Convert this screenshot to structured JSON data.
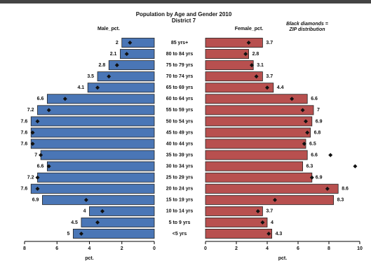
{
  "chart_data": {
    "type": "pyramid",
    "title": "Population by Age and Gender 2010",
    "subtitle": "District 7",
    "annotation": [
      "Black diamonds =",
      "ZIP distribution"
    ],
    "categories": [
      "85 yrs+",
      "80 to 84 yrs",
      "75 to 79 yrs",
      "70 to 74 yrs",
      "65 to 69 yrs",
      "60 to 64 yrs",
      "55 to 59 yrs",
      "50 to 54 yrs",
      "45 to 49 yrs",
      "40 to 44 yrs",
      "35 to 39 yrs",
      "30 to 34 yrs",
      "25 to 29 yrs",
      "20 to 24 yrs",
      "15 to 19 yrs",
      "10 to 14 yrs",
      "5 to 9 yrs",
      "<5 yrs"
    ],
    "series": [
      {
        "name": "Male_pct.",
        "color": "#4a76b6",
        "xlabel": "pct.",
        "xlim": [
          8,
          0
        ],
        "xticks": [
          8,
          6,
          4,
          2,
          0
        ],
        "values": [
          2,
          2.1,
          2.8,
          3.5,
          4.1,
          6.6,
          7.2,
          7.6,
          7.6,
          7.6,
          7,
          6.6,
          7.2,
          7.6,
          6.9,
          4,
          4.5,
          5
        ],
        "zip_values": [
          1.5,
          1.7,
          2.3,
          2.8,
          3.5,
          5.5,
          6.5,
          7.2,
          7.5,
          7.5,
          7,
          6.5,
          7.2,
          7.2,
          4.2,
          3.2,
          3.5,
          4.5
        ]
      },
      {
        "name": "Female_pct.",
        "color": "#b8504f",
        "xlabel": "pct.",
        "xlim": [
          0,
          10
        ],
        "xticks": [
          0,
          2,
          4,
          6,
          8,
          10
        ],
        "values": [
          3.7,
          2.8,
          3.1,
          3.7,
          4.4,
          6.6,
          7,
          6.9,
          6.8,
          6.5,
          6.6,
          6.3,
          6.9,
          8.6,
          8.3,
          3.7,
          4,
          4.3
        ],
        "zip_values": [
          2.8,
          2.6,
          3,
          3.3,
          4,
          5.6,
          6.3,
          6.5,
          6.6,
          6.4,
          8.1,
          9.7,
          6.9,
          7.9,
          4.5,
          3.4,
          3.7,
          4.1
        ]
      }
    ]
  }
}
